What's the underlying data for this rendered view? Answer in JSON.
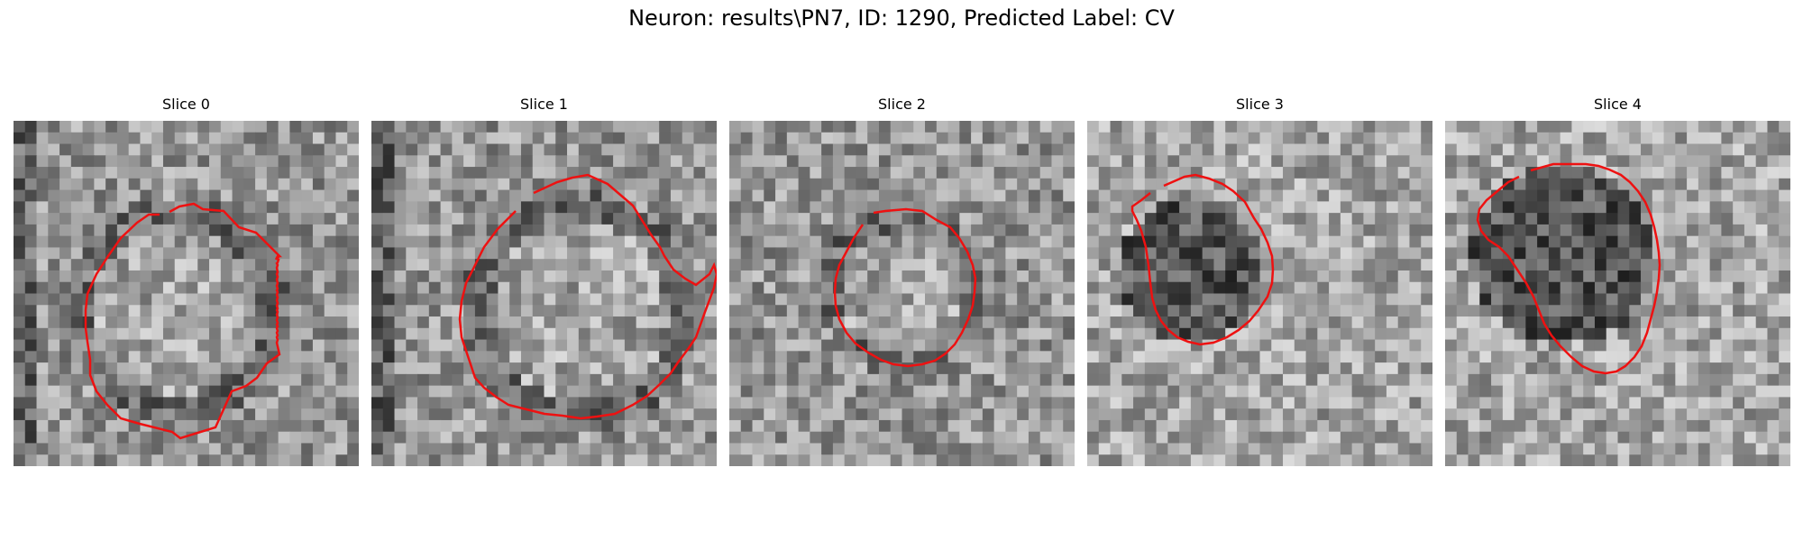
{
  "figure": {
    "title": "Neuron: results\\PN7, ID: 1290, Predicted Label: CV"
  },
  "slices": [
    {
      "label": "Slice 0"
    },
    {
      "label": "Slice 1"
    },
    {
      "label": "Slice 2"
    },
    {
      "label": "Slice 3"
    },
    {
      "label": "Slice 4"
    }
  ],
  "colors": {
    "contour": "#ee1111",
    "background": "#ffffff"
  }
}
